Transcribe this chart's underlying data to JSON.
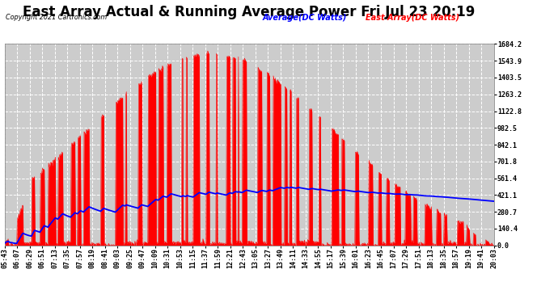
{
  "title": "East Array Actual & Running Average Power Fri Jul 23 20:19",
  "copyright": "Copyright 2021 Cartronics.com",
  "legend_avg": "Average(DC Watts)",
  "legend_east": "East Array(DC Watts)",
  "yticks": [
    0.0,
    140.4,
    280.7,
    421.1,
    561.4,
    701.8,
    842.1,
    982.5,
    1122.8,
    1263.2,
    1403.5,
    1543.9,
    1684.2
  ],
  "ymax": 1684.2,
  "ymin": 0.0,
  "background_color": "#ffffff",
  "plot_bg_color": "#cccccc",
  "grid_color": "#ffffff",
  "red_color": "#ff0000",
  "blue_color": "#0000ff",
  "title_fontsize": 12,
  "tick_label_fontsize": 6,
  "x_labels": [
    "05:43",
    "06:07",
    "06:29",
    "06:51",
    "07:13",
    "07:35",
    "07:57",
    "08:19",
    "08:41",
    "09:03",
    "09:25",
    "09:47",
    "10:09",
    "10:31",
    "10:53",
    "11:15",
    "11:37",
    "11:59",
    "12:21",
    "12:43",
    "13:05",
    "13:27",
    "13:49",
    "14:11",
    "14:33",
    "14:55",
    "15:17",
    "15:39",
    "16:01",
    "16:23",
    "16:45",
    "17:07",
    "17:29",
    "17:51",
    "18:13",
    "18:35",
    "18:57",
    "19:19",
    "19:41",
    "20:03"
  ]
}
